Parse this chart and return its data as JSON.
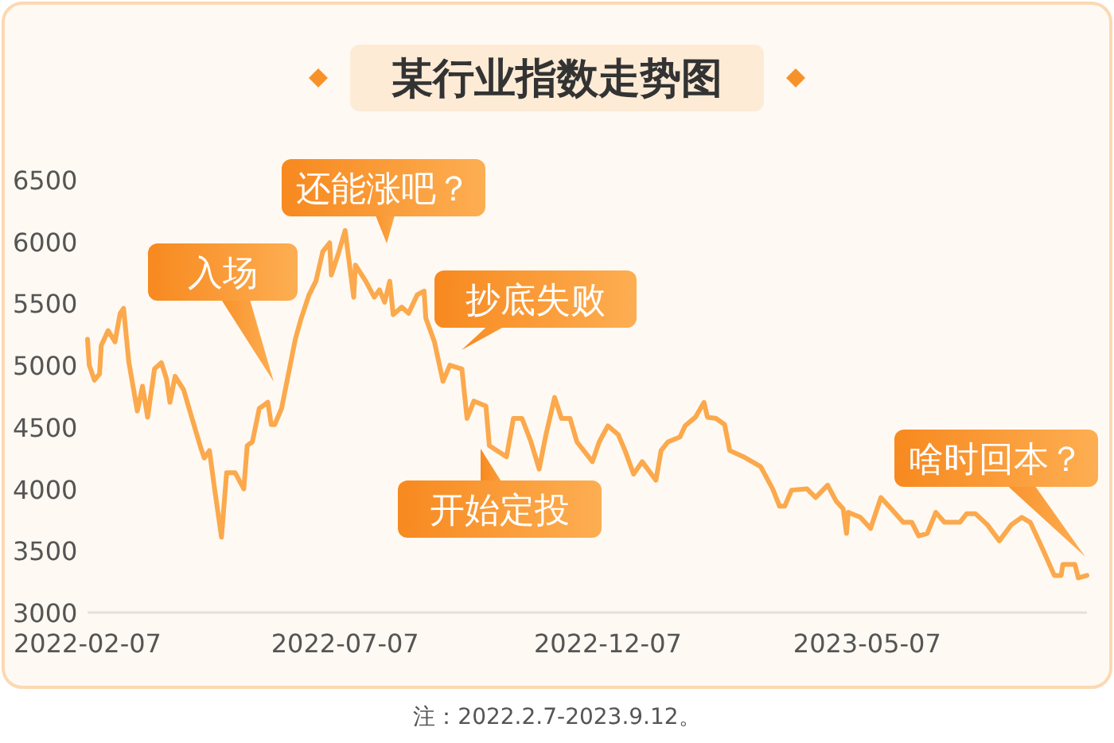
{
  "chart_data": {
    "type": "line",
    "title": "某行业指数走势图",
    "x": [
      "2022-02-07",
      "2022-02-08",
      "2022-02-11",
      "2022-02-14",
      "2022-02-15",
      "2022-02-19",
      "2022-02-23",
      "2022-02-26",
      "2022-02-28",
      "2022-03-03",
      "2022-03-08",
      "2022-03-11",
      "2022-03-14",
      "2022-03-18",
      "2022-03-22",
      "2022-03-25",
      "2022-03-27",
      "2022-03-30",
      "2022-04-04",
      "2022-04-08",
      "2022-04-14",
      "2022-04-16",
      "2022-04-19",
      "2022-04-22",
      "2022-04-26",
      "2022-04-29",
      "2022-05-04",
      "2022-05-09",
      "2022-05-11",
      "2022-05-14",
      "2022-05-18",
      "2022-05-23",
      "2022-05-25",
      "2022-05-27",
      "2022-05-31",
      "2022-06-05",
      "2022-06-08",
      "2022-06-11",
      "2022-06-16",
      "2022-06-20",
      "2022-06-24",
      "2022-06-28",
      "2022-06-29",
      "2022-07-03",
      "2022-07-07",
      "2022-07-12",
      "2022-07-13",
      "2022-07-19",
      "2022-07-24",
      "2022-07-27",
      "2022-07-30",
      "2022-08-02",
      "2022-08-04",
      "2022-08-09",
      "2022-08-13",
      "2022-08-18",
      "2022-08-22",
      "2022-08-23",
      "2022-08-28",
      "2022-09-02",
      "2022-09-06",
      "2022-09-13",
      "2022-09-16",
      "2022-09-20",
      "2022-09-27",
      "2022-09-29",
      "2022-10-09",
      "2022-10-13",
      "2022-10-18",
      "2022-10-23",
      "2022-10-28",
      "2022-11-01",
      "2022-11-06",
      "2022-11-10",
      "2022-11-15",
      "2022-11-19",
      "2022-11-28",
      "2022-12-02",
      "2022-12-07",
      "2022-12-13",
      "2022-12-17",
      "2022-12-22",
      "2022-12-27",
      "2023-01-04",
      "2023-01-07",
      "2023-01-11",
      "2023-01-18",
      "2023-01-21",
      "2023-01-27",
      "2023-02-01",
      "2023-02-03",
      "2023-02-08",
      "2023-02-13",
      "2023-02-16",
      "2023-02-24",
      "2023-03-01",
      "2023-03-06",
      "2023-03-13",
      "2023-03-17",
      "2023-03-20",
      "2023-03-24",
      "2023-04-02",
      "2023-04-07",
      "2023-04-14",
      "2023-04-19",
      "2023-04-23",
      "2023-04-25",
      "2023-04-26",
      "2023-05-03",
      "2023-05-09",
      "2023-05-15",
      "2023-05-21",
      "2023-05-28",
      "2023-06-02",
      "2023-06-06",
      "2023-06-11",
      "2023-06-16",
      "2023-06-21",
      "2023-06-30",
      "2023-07-04",
      "2023-07-09",
      "2023-07-16",
      "2023-07-23",
      "2023-07-30",
      "2023-08-05",
      "2023-08-10",
      "2023-08-17",
      "2023-08-24",
      "2023-08-28",
      "2023-08-29",
      "2023-09-05",
      "2023-09-07",
      "2023-09-12"
    ],
    "series": [
      {
        "color": "#fba94c",
        "values": [
          5210,
          5000,
          4880,
          4930,
          5160,
          5280,
          5190,
          5420,
          5460,
          5030,
          4630,
          4830,
          4580,
          4970,
          5020,
          4890,
          4700,
          4910,
          4800,
          4610,
          4330,
          4250,
          4310,
          4000,
          3610,
          4130,
          4130,
          4000,
          4350,
          4380,
          4650,
          4700,
          4520,
          4520,
          4650,
          5000,
          5210,
          5360,
          5570,
          5680,
          5920,
          5990,
          5730,
          5900,
          6090,
          5550,
          5810,
          5680,
          5550,
          5610,
          5510,
          5680,
          5410,
          5470,
          5420,
          5570,
          5600,
          5380,
          5190,
          4870,
          5000,
          4970,
          4570,
          4710,
          4670,
          4350,
          4260,
          4570,
          4570,
          4390,
          4160,
          4440,
          4740,
          4570,
          4570,
          4380,
          4220,
          4380,
          4510,
          4440,
          4310,
          4120,
          4220,
          4070,
          4310,
          4380,
          4420,
          4510,
          4580,
          4700,
          4580,
          4570,
          4520,
          4310,
          4260,
          4220,
          4180,
          4000,
          3860,
          3860,
          3990,
          4000,
          3930,
          4030,
          3900,
          3840,
          3640,
          3810,
          3770,
          3680,
          3930,
          3840,
          3730,
          3730,
          3620,
          3640,
          3810,
          3730,
          3730,
          3800,
          3800,
          3710,
          3580,
          3710,
          3770,
          3730,
          3520,
          3300,
          3300,
          3390,
          3390,
          3280,
          3300
        ]
      }
    ],
    "xlim": [
      "2022-02-07",
      "2023-09-12"
    ],
    "xticks": [
      "2022-02-07",
      "2022-07-07",
      "2022-12-07",
      "2023-05-07"
    ],
    "ylim": [
      3000,
      6500
    ],
    "yticks": [
      3000,
      3500,
      4000,
      4500,
      5000,
      5500,
      6000,
      6500
    ],
    "grid": false,
    "marker": "none",
    "line_style": "solid",
    "annotations": [
      "入场",
      "还能涨吧？",
      "抄底失败",
      "开始定投",
      "啥时回本？",
      "注：2022.2.7-2023.9.12。"
    ]
  }
}
